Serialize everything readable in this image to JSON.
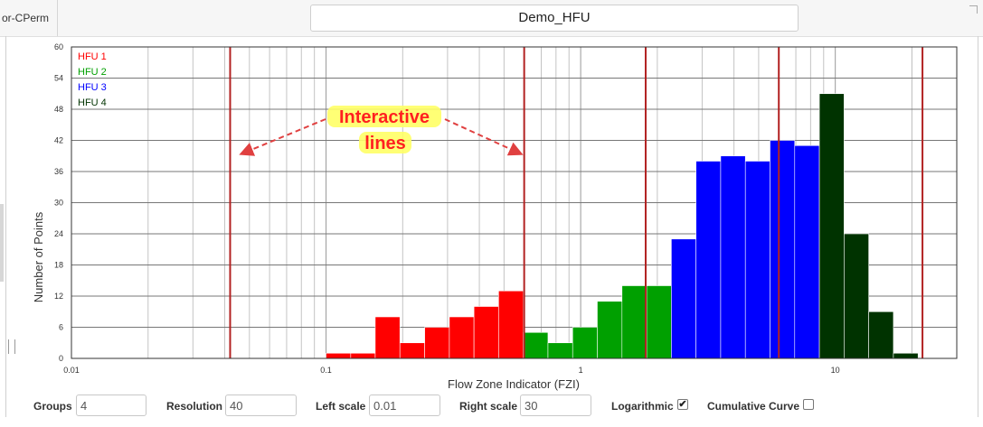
{
  "window": {
    "tab_left_label": "or-CPerm",
    "title": "Demo_HFU"
  },
  "chart_data": {
    "type": "bar",
    "xscale": "log",
    "xlim": [
      0.01,
      30
    ],
    "ylim": [
      0,
      60
    ],
    "xlabel": "Flow Zone Indicator (FZI)",
    "ylabel": "Number of Points",
    "y_ticks": [
      0,
      6,
      12,
      18,
      24,
      30,
      36,
      42,
      48,
      54,
      60
    ],
    "x_tick_labels": [
      {
        "value": 0.01,
        "label": "0.01"
      },
      {
        "value": 0.1,
        "label": "0.1"
      },
      {
        "value": 1,
        "label": "1"
      },
      {
        "value": 10,
        "label": "10"
      }
    ],
    "bin_edges_log10": [
      -2,
      -1.95,
      -1.9,
      -1.85,
      -1.8,
      -1.75,
      -1.7,
      -1.65,
      -1.6,
      -1.55,
      -1.5,
      -1.45,
      -1.4,
      -1.35,
      -1.3,
      -1.25,
      -1.2,
      -1.15,
      -1.1,
      -1.05,
      -1.0,
      -0.95,
      -0.9,
      -0.85,
      -0.8,
      -0.75,
      -0.7,
      -0.65,
      -0.6,
      -0.55,
      -0.5,
      -0.45,
      -0.4,
      -0.35,
      -0.3,
      -0.25,
      -0.2,
      -0.15,
      -0.1,
      -0.05,
      0.0,
      0.05,
      0.1,
      0.15,
      0.2,
      0.25,
      0.3,
      0.35,
      0.4,
      0.45,
      0.5,
      0.55,
      0.6,
      0.65,
      0.7,
      0.75,
      0.8,
      0.85,
      0.9,
      0.95,
      1.0,
      1.05,
      1.1,
      1.15,
      1.2,
      1.25,
      1.3,
      1.35,
      1.4,
      1.45,
      1.5
    ],
    "bars": [
      {
        "x0": 0.1,
        "x1": 0.125,
        "value": 1,
        "group": 0
      },
      {
        "x0": 0.125,
        "x1": 0.156,
        "value": 1,
        "group": 0
      },
      {
        "x0": 0.156,
        "x1": 0.195,
        "value": 8,
        "group": 0
      },
      {
        "x0": 0.195,
        "x1": 0.244,
        "value": 3,
        "group": 0
      },
      {
        "x0": 0.244,
        "x1": 0.305,
        "value": 6,
        "group": 0
      },
      {
        "x0": 0.305,
        "x1": 0.381,
        "value": 8,
        "group": 0
      },
      {
        "x0": 0.381,
        "x1": 0.476,
        "value": 10,
        "group": 0
      },
      {
        "x0": 0.476,
        "x1": 0.595,
        "value": 13,
        "group": 0
      },
      {
        "x0": 0.595,
        "x1": 0.744,
        "value": 5,
        "group": 1
      },
      {
        "x0": 0.744,
        "x1": 0.93,
        "value": 3,
        "group": 1
      },
      {
        "x0": 0.93,
        "x1": 1.162,
        "value": 6,
        "group": 1
      },
      {
        "x0": 1.162,
        "x1": 1.453,
        "value": 11,
        "group": 1
      },
      {
        "x0": 1.453,
        "x1": 1.816,
        "value": 14,
        "group": 1
      },
      {
        "x0": 1.816,
        "x1": 2.27,
        "value": 14,
        "group": 1
      },
      {
        "x0": 2.27,
        "x1": 2.838,
        "value": 23,
        "group": 2
      },
      {
        "x0": 2.838,
        "x1": 3.547,
        "value": 38,
        "group": 2
      },
      {
        "x0": 3.547,
        "x1": 4.434,
        "value": 39,
        "group": 2
      },
      {
        "x0": 4.434,
        "x1": 5.542,
        "value": 38,
        "group": 2
      },
      {
        "x0": 5.542,
        "x1": 6.928,
        "value": 42,
        "group": 2
      },
      {
        "x0": 6.928,
        "x1": 8.66,
        "value": 41,
        "group": 2
      },
      {
        "x0": 8.66,
        "x1": 10.825,
        "value": 51,
        "group": 3
      },
      {
        "x0": 10.825,
        "x1": 13.531,
        "value": 24,
        "group": 3
      },
      {
        "x0": 13.531,
        "x1": 16.914,
        "value": 9,
        "group": 3
      },
      {
        "x0": 16.914,
        "x1": 21.142,
        "value": 1,
        "group": 3
      }
    ],
    "series": [
      {
        "name": "HFU 1",
        "color": "#ff0000"
      },
      {
        "name": "HFU 2",
        "color": "#00a000"
      },
      {
        "name": "HFU 3",
        "color": "#0000ff"
      },
      {
        "name": "HFU 4",
        "color": "#003300"
      }
    ],
    "divider_lines": [
      0.042,
      0.6,
      1.8,
      6.0,
      22.0
    ],
    "divider_color": "#b22222",
    "grid": true,
    "legend_position": "top-left",
    "annotation": {
      "text_line1": "Interactive",
      "text_line2": "lines",
      "text_color": "#ff2020",
      "highlight_color": "#ffff66",
      "arrow_color": "#e04040"
    }
  },
  "controls": {
    "groups": {
      "label": "Groups",
      "value": "4"
    },
    "resolution": {
      "label": "Resolution",
      "value": "40"
    },
    "left_scale": {
      "label": "Left scale",
      "value": "0.01"
    },
    "right_scale": {
      "label": "Right scale",
      "value": "30"
    },
    "logarithmic": {
      "label": "Logarithmic",
      "checked": true
    },
    "cumulative": {
      "label": "Cumulative Curve",
      "checked": false
    }
  }
}
